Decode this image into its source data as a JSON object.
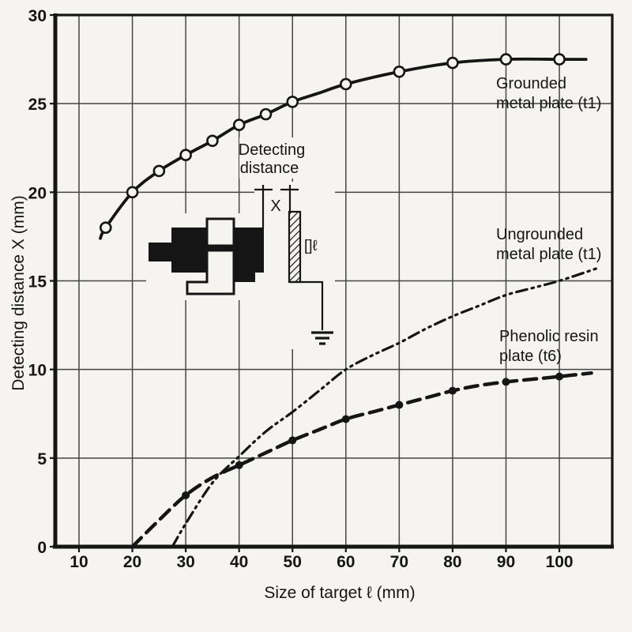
{
  "colors": {
    "background": "#f5f4f0",
    "ink": "#151515",
    "grid": "#454545"
  },
  "chart_data": {
    "type": "line",
    "title": "",
    "xlabel": "Size of target ℓ (mm)",
    "ylabel": "Detecting distance X (mm)",
    "xlim": [
      5.5,
      110
    ],
    "ylim": [
      0,
      30
    ],
    "x_ticks": [
      10,
      20,
      30,
      40,
      50,
      60,
      70,
      80,
      90,
      100
    ],
    "y_ticks": [
      0,
      5,
      10,
      15,
      20,
      25,
      30
    ],
    "grid": true,
    "legend_position": "inline-labels",
    "series": [
      {
        "name": "Grounded metal plate (t1)",
        "label_lines": [
          "Grounded",
          "metal plate (t1)"
        ],
        "style": "solid",
        "marker": "open-circle",
        "points": [
          [
            14,
            17.4
          ],
          [
            15,
            18
          ],
          [
            20,
            20
          ],
          [
            25,
            21.2
          ],
          [
            30,
            22.1
          ],
          [
            35,
            22.9
          ],
          [
            40,
            23.8
          ],
          [
            45,
            24.4
          ],
          [
            50,
            25.1
          ],
          [
            55,
            25.6
          ],
          [
            60,
            26.1
          ],
          [
            70,
            26.8
          ],
          [
            80,
            27.3
          ],
          [
            90,
            27.5
          ],
          [
            100,
            27.5
          ],
          [
            105,
            27.5
          ]
        ],
        "marker_points": [
          [
            15,
            18
          ],
          [
            20,
            20
          ],
          [
            25,
            21.2
          ],
          [
            30,
            22.1
          ],
          [
            35,
            22.9
          ],
          [
            40,
            23.8
          ],
          [
            45,
            24.4
          ],
          [
            50,
            25.1
          ],
          [
            60,
            26.1
          ],
          [
            70,
            26.8
          ],
          [
            80,
            27.3
          ],
          [
            90,
            27.5
          ],
          [
            100,
            27.5
          ]
        ]
      },
      {
        "name": "Ungrounded metal plate (t1)",
        "label_lines": [
          "Ungrounded",
          "metal plate (t1)"
        ],
        "style": "dash-dot-dot",
        "marker": "none",
        "points": [
          [
            27.5,
            0
          ],
          [
            30,
            1.3
          ],
          [
            35,
            3.6
          ],
          [
            40,
            5.1
          ],
          [
            45,
            6.5
          ],
          [
            50,
            7.6
          ],
          [
            55,
            8.8
          ],
          [
            60,
            10
          ],
          [
            65,
            10.8
          ],
          [
            70,
            11.5
          ],
          [
            75,
            12.3
          ],
          [
            80,
            13
          ],
          [
            85,
            13.6
          ],
          [
            90,
            14.2
          ],
          [
            95,
            14.6
          ],
          [
            100,
            15
          ],
          [
            107,
            15.7
          ]
        ],
        "marker_points": []
      },
      {
        "name": "Phenolic resin plate (t6)",
        "label_lines": [
          "Phenolic resin",
          "plate (t6)"
        ],
        "style": "long-dash",
        "marker": "filled-circle",
        "points": [
          [
            20,
            0
          ],
          [
            25,
            1.5
          ],
          [
            30,
            2.9
          ],
          [
            35,
            3.9
          ],
          [
            40,
            4.6
          ],
          [
            45,
            5.3
          ],
          [
            50,
            6
          ],
          [
            55,
            6.6
          ],
          [
            60,
            7.2
          ],
          [
            65,
            7.6
          ],
          [
            70,
            8
          ],
          [
            75,
            8.4
          ],
          [
            80,
            8.8
          ],
          [
            85,
            9.1
          ],
          [
            90,
            9.3
          ],
          [
            95,
            9.45
          ],
          [
            100,
            9.6
          ],
          [
            106,
            9.8
          ]
        ],
        "marker_points": [
          [
            30,
            2.9
          ],
          [
            40,
            4.6
          ],
          [
            50,
            6
          ],
          [
            60,
            7.2
          ],
          [
            70,
            8
          ],
          [
            80,
            8.8
          ],
          [
            90,
            9.3
          ],
          [
            100,
            9.6
          ]
        ]
      }
    ]
  },
  "inset": {
    "caption_line1": "Detecting",
    "caption_line2": "distance",
    "dimension_label": "X",
    "target_size_label": "[]ℓ"
  }
}
